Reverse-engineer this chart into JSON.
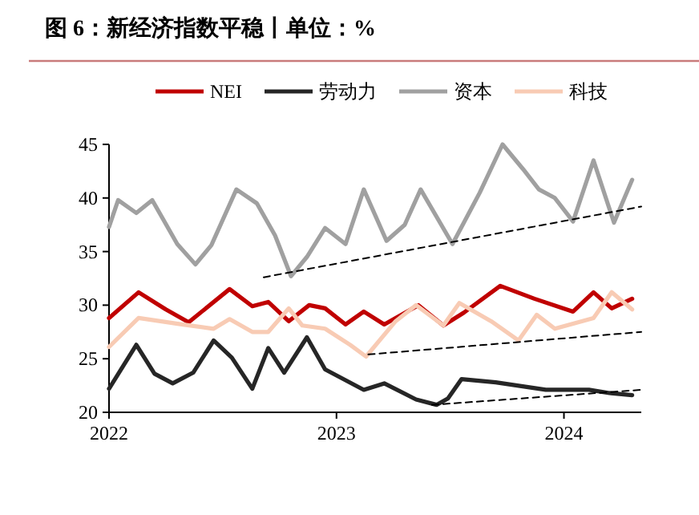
{
  "chart_data": {
    "type": "line",
    "title": "图 6：新经济指数平稳丨单位：%",
    "xlim": [
      2022,
      2024.34
    ],
    "xticks": [
      2022,
      2023,
      2024
    ],
    "ylim": [
      20,
      45
    ],
    "yticks": [
      20,
      25,
      30,
      35,
      40,
      45
    ],
    "grid": false,
    "legend": "top",
    "marker": "none",
    "line_style": "solid",
    "series": [
      {
        "name": "NEI",
        "color": "#c00000",
        "x": [
          2022.0,
          2022.13,
          2022.25,
          2022.35,
          2022.53,
          2022.63,
          2022.7,
          2022.79,
          2022.88,
          2022.95,
          2023.04,
          2023.12,
          2023.21,
          2023.36,
          2023.47,
          2023.56,
          2023.72,
          2023.87,
          2024.04,
          2024.13,
          2024.21,
          2024.3
        ],
        "values": [
          28.8,
          31.2,
          29.6,
          28.4,
          31.5,
          29.9,
          30.3,
          28.5,
          30.0,
          29.7,
          28.2,
          29.4,
          28.2,
          30.0,
          28.1,
          29.3,
          31.8,
          30.6,
          29.4,
          31.2,
          29.7,
          30.6
        ]
      },
      {
        "name": "劳动力",
        "color": "#262626",
        "x": [
          2022.0,
          2022.12,
          2022.2,
          2022.28,
          2022.37,
          2022.46,
          2022.54,
          2022.63,
          2022.7,
          2022.77,
          2022.87,
          2022.95,
          2023.12,
          2023.21,
          2023.35,
          2023.44,
          2023.49,
          2023.55,
          2023.7,
          2023.92,
          2024.11,
          2024.2,
          2024.3
        ],
        "values": [
          22.2,
          26.3,
          23.6,
          22.7,
          23.7,
          26.7,
          25.1,
          22.2,
          26.0,
          23.7,
          27.0,
          24.0,
          22.1,
          22.7,
          21.2,
          20.7,
          21.3,
          23.1,
          22.8,
          22.1,
          22.1,
          21.8,
          21.6
        ]
      },
      {
        "name": "资本",
        "color": "#a0a0a0",
        "x": [
          2022.0,
          2022.04,
          2022.12,
          2022.19,
          2022.3,
          2022.38,
          2022.45,
          2022.56,
          2022.65,
          2022.73,
          2022.8,
          2022.87,
          2022.95,
          2023.04,
          2023.12,
          2023.22,
          2023.3,
          2023.37,
          2023.51,
          2023.63,
          2023.73,
          2023.82,
          2023.89,
          2023.96,
          2024.04,
          2024.13,
          2024.22,
          2024.3
        ],
        "values": [
          37.3,
          39.8,
          38.6,
          39.8,
          35.7,
          33.8,
          35.6,
          40.8,
          39.5,
          36.5,
          32.7,
          34.5,
          37.2,
          35.7,
          40.8,
          36.0,
          37.5,
          40.8,
          35.7,
          40.5,
          45.0,
          42.7,
          40.8,
          40.0,
          37.8,
          43.5,
          37.7,
          41.7
        ]
      },
      {
        "name": "科技",
        "color": "#f8cbb4",
        "x": [
          2022.0,
          2022.13,
          2022.32,
          2022.46,
          2022.53,
          2022.63,
          2022.7,
          2022.79,
          2022.85,
          2022.95,
          2023.06,
          2023.13,
          2023.26,
          2023.35,
          2023.47,
          2023.54,
          2023.68,
          2023.8,
          2023.88,
          2023.96,
          2024.13,
          2024.21,
          2024.3
        ],
        "values": [
          26.1,
          28.8,
          28.2,
          27.8,
          28.7,
          27.5,
          27.5,
          29.7,
          28.1,
          27.8,
          26.3,
          25.2,
          28.5,
          30.0,
          28.1,
          30.2,
          28.5,
          26.7,
          29.1,
          27.8,
          28.8,
          31.2,
          29.6
        ]
      },
      {
        "type": "line",
        "line_style": "dashed",
        "color": "#000000",
        "x": [
          2022.68,
          2024.34
        ],
        "values": [
          32.6,
          39.2
        ]
      },
      {
        "type": "line",
        "line_style": "dashed",
        "color": "#000000",
        "x": [
          2023.14,
          2024.34
        ],
        "values": [
          25.4,
          27.5
        ]
      },
      {
        "type": "line",
        "line_style": "dashed",
        "color": "#000000",
        "x": [
          2023.42,
          2024.34
        ],
        "values": [
          20.7,
          22.1
        ]
      }
    ]
  }
}
